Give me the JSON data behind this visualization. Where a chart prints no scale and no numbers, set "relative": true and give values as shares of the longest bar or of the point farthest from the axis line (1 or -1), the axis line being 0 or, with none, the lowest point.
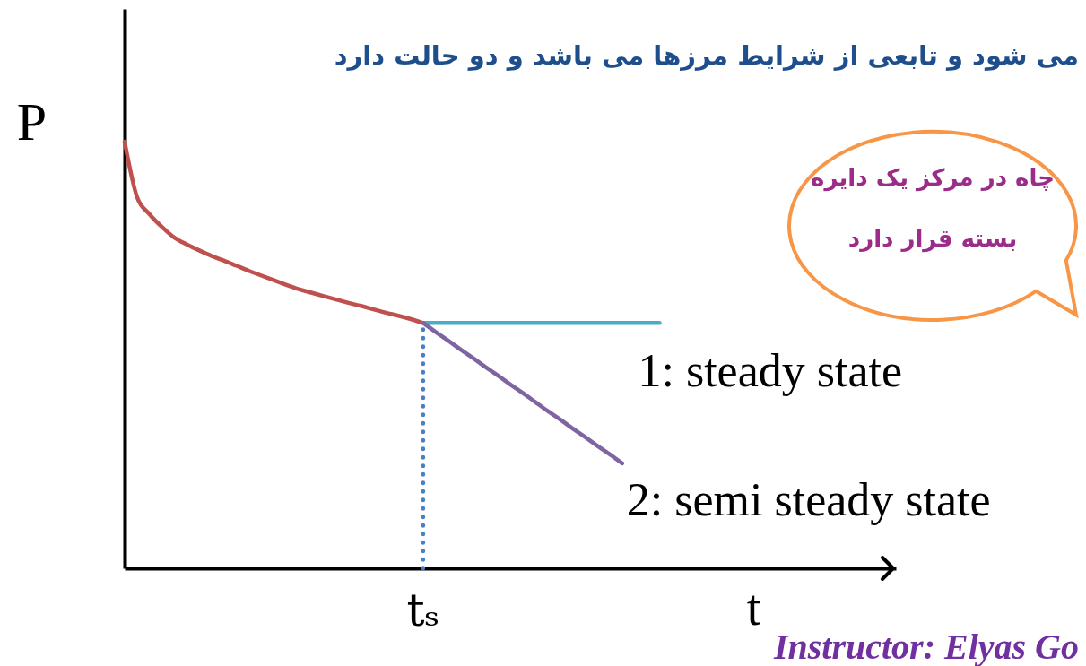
{
  "chart_data": {
    "type": "line",
    "title": "می شود و تابعی از شرایط مرزها می باشد و دو حالت دارد",
    "xlabel": "t",
    "ylabel": "P",
    "relative": true,
    "categories": [
      null,
      null,
      null,
      null,
      null,
      null,
      null,
      null,
      null,
      null,
      null,
      null,
      null,
      null,
      null,
      null,
      null,
      null,
      null,
      null,
      null,
      null,
      null,
      null,
      null,
      null,
      null,
      null,
      null,
      null,
      null,
      null,
      null,
      null,
      null,
      null,
      null,
      null,
      null,
      null,
      null,
      null,
      null,
      null,
      null,
      null,
      null,
      null,
      null,
      null,
      null,
      null,
      null,
      null,
      null,
      null,
      null,
      null,
      null,
      null,
      null,
      null,
      null
    ],
    "series": [
      {
        "color": "#c0504d",
        "values": [
          1.0,
          0.87,
          0.83,
          0.8,
          0.775,
          0.759,
          0.745,
          0.732,
          0.721,
          0.709,
          0.697,
          0.686,
          0.675,
          0.664,
          0.654,
          0.646,
          0.638,
          0.63,
          0.622,
          0.615,
          0.607,
          0.599,
          0.592,
          0.584,
          0.575,
          null,
          null,
          null,
          null,
          null,
          null,
          null,
          null,
          null,
          null,
          null,
          null,
          null,
          null,
          null,
          null,
          null,
          null,
          null,
          null,
          null,
          null,
          null,
          null,
          null,
          null,
          null,
          null,
          null,
          null,
          null,
          null,
          null,
          null,
          null,
          null,
          null,
          null
        ]
      },
      {
        "name": "1: steady state",
        "color": "#4bacc6",
        "values": [
          null,
          null,
          null,
          null,
          null,
          null,
          null,
          null,
          null,
          null,
          null,
          null,
          null,
          null,
          null,
          null,
          null,
          null,
          null,
          null,
          null,
          null,
          null,
          null,
          0.575,
          0.575,
          0.575,
          0.575,
          0.575,
          0.575,
          0.575,
          0.575,
          0.575,
          0.575,
          0.575,
          0.575,
          0.575,
          0.575,
          0.575,
          0.575,
          0.575,
          0.575,
          0.575,
          0.575,
          null,
          null,
          null,
          null,
          null,
          null,
          null,
          null,
          null,
          null,
          null,
          null,
          null,
          null,
          null,
          null,
          null,
          null,
          null
        ]
      },
      {
        "name": "2: semi steady state",
        "color": "#8064a2",
        "values": [
          null,
          null,
          null,
          null,
          null,
          null,
          null,
          null,
          null,
          null,
          null,
          null,
          null,
          null,
          null,
          null,
          null,
          null,
          null,
          null,
          null,
          null,
          null,
          null,
          0.575,
          0.554,
          0.534,
          0.513,
          0.493,
          0.472,
          0.452,
          0.431,
          0.411,
          0.39,
          0.369,
          0.349,
          0.328,
          0.308,
          0.287,
          0.267,
          0.246,
          null,
          null,
          null,
          null,
          null,
          null,
          null,
          null,
          null,
          null,
          null,
          null,
          null,
          null,
          null,
          null,
          null,
          null,
          null,
          null,
          null,
          null
        ]
      }
    ],
    "annotations": [
      "چاه در مرکز یک دایره\nبسته قرار دارد",
      "tₛ",
      "Instructor: Elyas Go"
    ],
    "line_style": "solid"
  }
}
